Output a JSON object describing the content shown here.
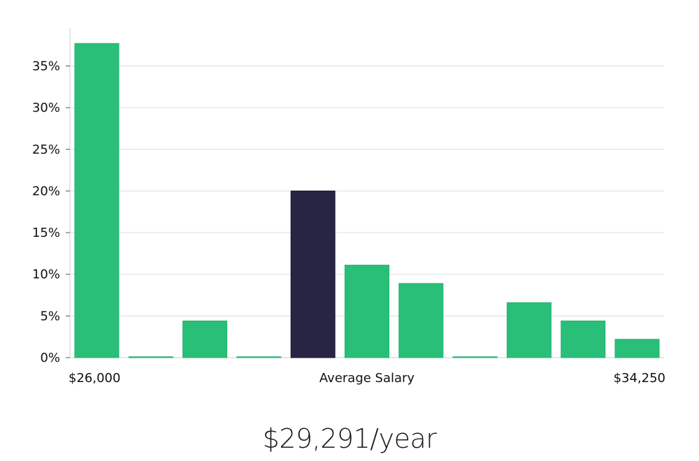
{
  "chart_data": {
    "type": "bar",
    "values": [
      37.7,
      0,
      4.4,
      0,
      20.0,
      11.1,
      8.9,
      0,
      6.6,
      4.4,
      2.2
    ],
    "highlight_index": 4,
    "ylim": [
      0,
      40
    ],
    "yticks": [
      0,
      5,
      10,
      15,
      20,
      25,
      30,
      35
    ],
    "ytick_labels": [
      "0%",
      "5%",
      "10%",
      "15%",
      "20%",
      "25%",
      "30%",
      "35%"
    ],
    "x_labels": {
      "left": "$26,000",
      "center": "Average Salary",
      "right": "$34,250"
    },
    "grid": true,
    "legend": "none"
  },
  "headline": "$29,291/year",
  "colors": {
    "bar": "#2abf78",
    "bar_edge": "#22b06c",
    "highlight": "#282444",
    "grid": "#dddddd",
    "axis": "#cccccc"
  }
}
